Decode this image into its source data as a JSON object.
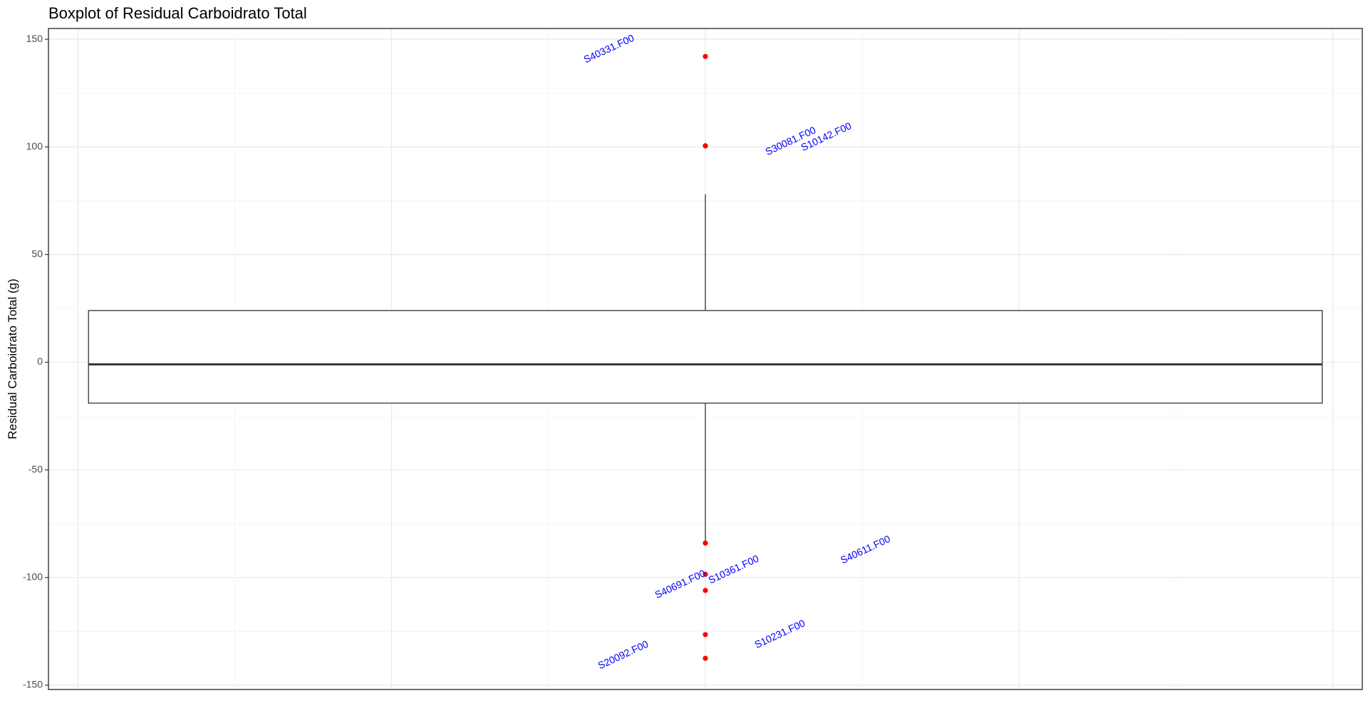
{
  "chart_data": {
    "type": "boxplot",
    "title": "Boxplot of Residual Carboidrato Total",
    "xlabel": "",
    "ylabel": "Residual Carboidrato Total (g)",
    "ylim": [
      -152,
      155
    ],
    "y_ticks": [
      150,
      100,
      50,
      0,
      -50,
      -100,
      -150
    ],
    "y_tick_labels": [
      "150",
      "100",
      "50",
      "0",
      "-50",
      "-100",
      "-150"
    ],
    "x_ticks": [],
    "grid": true,
    "legend": "none",
    "box": {
      "q1": -19,
      "median": -1,
      "q3": 24,
      "whisker_low": -84,
      "whisker_high": 78
    },
    "outliers": [
      {
        "y": 142,
        "label": "S40331.F00"
      },
      {
        "y": 100.5,
        "label": "S30081.F00"
      },
      {
        "y": 100.5,
        "label": "S10142.F00"
      },
      {
        "y": -84,
        "label": "S40611.F00"
      },
      {
        "y": -98.5,
        "label": "S10361.F00"
      },
      {
        "y": -106,
        "label": "S40691.F00"
      },
      {
        "y": -126.5,
        "label": "S10231.F00"
      },
      {
        "y": -137.5,
        "label": "S20092.F00"
      }
    ],
    "outlier_color": "#ff0000",
    "label_color": "#0000ff",
    "box_line_color": "#333333",
    "background": "#ffffff",
    "grid_color": "#ebebeb",
    "panel_border_color": "#333333"
  }
}
